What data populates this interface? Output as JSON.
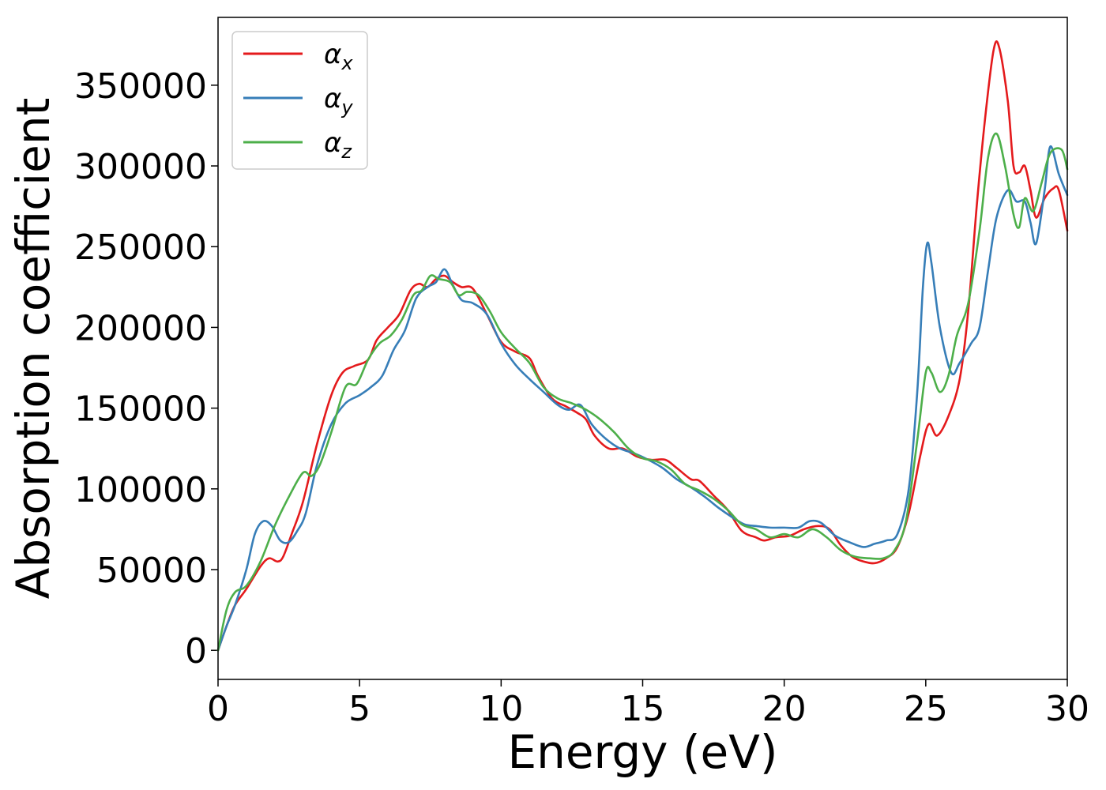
{
  "chart_data": {
    "type": "line",
    "title": "",
    "xlabel": "Energy (eV)",
    "ylabel": "Absorption coefficient",
    "xlim": [
      0,
      30
    ],
    "ylim": [
      -18000,
      392000
    ],
    "xticks": [
      0,
      5,
      10,
      15,
      20,
      25,
      30
    ],
    "yticks": [
      0,
      50000,
      100000,
      150000,
      200000,
      250000,
      300000,
      350000
    ],
    "grid": false,
    "legend_position": "top-left",
    "series": [
      {
        "name": "α_x",
        "label_main": "α",
        "label_sub": "x",
        "color": "#e41a1c",
        "points": [
          [
            0,
            0
          ],
          [
            0.3,
            15000
          ],
          [
            0.6,
            28000
          ],
          [
            1.0,
            38000
          ],
          [
            1.5,
            52000
          ],
          [
            1.8,
            57000
          ],
          [
            2.1,
            55000
          ],
          [
            2.3,
            58000
          ],
          [
            2.6,
            72000
          ],
          [
            3.0,
            92000
          ],
          [
            3.5,
            128000
          ],
          [
            4.0,
            158000
          ],
          [
            4.4,
            172000
          ],
          [
            4.8,
            176000
          ],
          [
            5.3,
            180000
          ],
          [
            5.6,
            192000
          ],
          [
            6.0,
            200000
          ],
          [
            6.4,
            208000
          ],
          [
            6.8,
            223000
          ],
          [
            7.1,
            227000
          ],
          [
            7.4,
            225000
          ],
          [
            7.7,
            230000
          ],
          [
            8.0,
            232000
          ],
          [
            8.3,
            228000
          ],
          [
            8.6,
            225000
          ],
          [
            9.0,
            224000
          ],
          [
            9.5,
            208000
          ],
          [
            10.0,
            191000
          ],
          [
            10.5,
            185000
          ],
          [
            11.0,
            181000
          ],
          [
            11.3,
            170000
          ],
          [
            11.8,
            156000
          ],
          [
            12.3,
            151000
          ],
          [
            12.7,
            147000
          ],
          [
            13.0,
            143000
          ],
          [
            13.3,
            133000
          ],
          [
            13.8,
            125000
          ],
          [
            14.3,
            125000
          ],
          [
            14.8,
            120000
          ],
          [
            15.3,
            118000
          ],
          [
            15.8,
            118000
          ],
          [
            16.2,
            113000
          ],
          [
            16.7,
            106000
          ],
          [
            17.0,
            105000
          ],
          [
            17.5,
            96000
          ],
          [
            18.0,
            87000
          ],
          [
            18.5,
            74000
          ],
          [
            19.0,
            70000
          ],
          [
            19.3,
            68000
          ],
          [
            19.7,
            70000
          ],
          [
            20.2,
            71000
          ],
          [
            20.7,
            75000
          ],
          [
            21.2,
            77000
          ],
          [
            21.6,
            75000
          ],
          [
            22.0,
            65000
          ],
          [
            22.4,
            58000
          ],
          [
            22.8,
            55000
          ],
          [
            23.2,
            54000
          ],
          [
            23.6,
            57000
          ],
          [
            24.0,
            64000
          ],
          [
            24.4,
            85000
          ],
          [
            24.8,
            120000
          ],
          [
            25.1,
            140000
          ],
          [
            25.4,
            133000
          ],
          [
            25.8,
            145000
          ],
          [
            26.2,
            168000
          ],
          [
            26.5,
            210000
          ],
          [
            26.8,
            275000
          ],
          [
            27.1,
            330000
          ],
          [
            27.4,
            372000
          ],
          [
            27.6,
            373000
          ],
          [
            27.9,
            340000
          ],
          [
            28.1,
            300000
          ],
          [
            28.3,
            296000
          ],
          [
            28.5,
            300000
          ],
          [
            28.7,
            285000
          ],
          [
            28.9,
            268000
          ],
          [
            29.2,
            280000
          ],
          [
            29.5,
            286000
          ],
          [
            29.7,
            285000
          ],
          [
            30.0,
            260000
          ]
        ]
      },
      {
        "name": "α_y",
        "label_main": "α",
        "label_sub": "y",
        "color": "#377eb8",
        "points": [
          [
            0,
            0
          ],
          [
            0.3,
            15000
          ],
          [
            0.6,
            28000
          ],
          [
            1.0,
            50000
          ],
          [
            1.3,
            72000
          ],
          [
            1.6,
            80000
          ],
          [
            1.9,
            77000
          ],
          [
            2.2,
            68000
          ],
          [
            2.5,
            67000
          ],
          [
            2.8,
            74000
          ],
          [
            3.1,
            85000
          ],
          [
            3.5,
            115000
          ],
          [
            4.0,
            140000
          ],
          [
            4.5,
            153000
          ],
          [
            5.0,
            158000
          ],
          [
            5.4,
            163000
          ],
          [
            5.8,
            170000
          ],
          [
            6.2,
            186000
          ],
          [
            6.6,
            198000
          ],
          [
            7.0,
            218000
          ],
          [
            7.4,
            225000
          ],
          [
            7.7,
            228000
          ],
          [
            8.0,
            236000
          ],
          [
            8.3,
            226000
          ],
          [
            8.6,
            217000
          ],
          [
            9.0,
            215000
          ],
          [
            9.5,
            208000
          ],
          [
            10.0,
            190000
          ],
          [
            10.5,
            177000
          ],
          [
            11.0,
            168000
          ],
          [
            11.5,
            160000
          ],
          [
            12.0,
            152000
          ],
          [
            12.4,
            149000
          ],
          [
            12.8,
            152000
          ],
          [
            13.2,
            140000
          ],
          [
            13.7,
            131000
          ],
          [
            14.2,
            125000
          ],
          [
            14.7,
            122000
          ],
          [
            15.2,
            118000
          ],
          [
            15.7,
            113000
          ],
          [
            16.2,
            106000
          ],
          [
            16.7,
            101000
          ],
          [
            17.2,
            95000
          ],
          [
            17.7,
            88000
          ],
          [
            18.2,
            82000
          ],
          [
            18.6,
            78000
          ],
          [
            19.0,
            77000
          ],
          [
            19.5,
            76000
          ],
          [
            20.0,
            76000
          ],
          [
            20.5,
            76000
          ],
          [
            20.9,
            80000
          ],
          [
            21.3,
            79000
          ],
          [
            21.8,
            71000
          ],
          [
            22.3,
            67000
          ],
          [
            22.8,
            64000
          ],
          [
            23.2,
            66000
          ],
          [
            23.6,
            68000
          ],
          [
            24.0,
            72000
          ],
          [
            24.4,
            100000
          ],
          [
            24.7,
            160000
          ],
          [
            24.9,
            225000
          ],
          [
            25.05,
            252000
          ],
          [
            25.2,
            240000
          ],
          [
            25.5,
            200000
          ],
          [
            25.9,
            172000
          ],
          [
            26.2,
            178000
          ],
          [
            26.6,
            190000
          ],
          [
            26.9,
            200000
          ],
          [
            27.2,
            235000
          ],
          [
            27.5,
            268000
          ],
          [
            27.9,
            285000
          ],
          [
            28.2,
            278000
          ],
          [
            28.5,
            278000
          ],
          [
            28.7,
            265000
          ],
          [
            28.9,
            252000
          ],
          [
            29.2,
            285000
          ],
          [
            29.4,
            312000
          ],
          [
            29.7,
            295000
          ],
          [
            30.0,
            282000
          ]
        ]
      },
      {
        "name": "α_z",
        "label_main": "α",
        "label_sub": "z",
        "color": "#4daf4a",
        "points": [
          [
            0,
            0
          ],
          [
            0.3,
            25000
          ],
          [
            0.6,
            36000
          ],
          [
            1.0,
            40000
          ],
          [
            1.5,
            55000
          ],
          [
            2.0,
            77000
          ],
          [
            2.5,
            95000
          ],
          [
            3.0,
            110000
          ],
          [
            3.3,
            108000
          ],
          [
            3.6,
            115000
          ],
          [
            4.0,
            135000
          ],
          [
            4.5,
            163000
          ],
          [
            4.9,
            165000
          ],
          [
            5.3,
            180000
          ],
          [
            5.7,
            190000
          ],
          [
            6.1,
            195000
          ],
          [
            6.5,
            205000
          ],
          [
            6.9,
            220000
          ],
          [
            7.2,
            223000
          ],
          [
            7.5,
            232000
          ],
          [
            7.8,
            230000
          ],
          [
            8.2,
            228000
          ],
          [
            8.5,
            220000
          ],
          [
            8.8,
            222000
          ],
          [
            9.2,
            220000
          ],
          [
            9.6,
            210000
          ],
          [
            10.0,
            197000
          ],
          [
            10.5,
            187000
          ],
          [
            11.0,
            178000
          ],
          [
            11.5,
            163000
          ],
          [
            12.0,
            156000
          ],
          [
            12.5,
            153000
          ],
          [
            13.0,
            149000
          ],
          [
            13.5,
            143000
          ],
          [
            14.0,
            135000
          ],
          [
            14.5,
            125000
          ],
          [
            15.0,
            119000
          ],
          [
            15.5,
            117000
          ],
          [
            16.0,
            112000
          ],
          [
            16.5,
            103000
          ],
          [
            17.0,
            99000
          ],
          [
            17.5,
            94000
          ],
          [
            18.0,
            87000
          ],
          [
            18.5,
            78000
          ],
          [
            19.0,
            75000
          ],
          [
            19.5,
            70000
          ],
          [
            20.0,
            72000
          ],
          [
            20.5,
            70000
          ],
          [
            21.0,
            75000
          ],
          [
            21.5,
            70000
          ],
          [
            22.0,
            62000
          ],
          [
            22.5,
            58000
          ],
          [
            23.0,
            57000
          ],
          [
            23.5,
            57000
          ],
          [
            23.9,
            62000
          ],
          [
            24.3,
            80000
          ],
          [
            24.7,
            130000
          ],
          [
            25.0,
            172000
          ],
          [
            25.2,
            172000
          ],
          [
            25.5,
            160000
          ],
          [
            25.8,
            170000
          ],
          [
            26.1,
            195000
          ],
          [
            26.5,
            215000
          ],
          [
            26.9,
            260000
          ],
          [
            27.2,
            305000
          ],
          [
            27.5,
            320000
          ],
          [
            27.8,
            300000
          ],
          [
            28.1,
            270000
          ],
          [
            28.3,
            262000
          ],
          [
            28.5,
            280000
          ],
          [
            28.8,
            272000
          ],
          [
            29.1,
            290000
          ],
          [
            29.4,
            308000
          ],
          [
            29.8,
            310000
          ],
          [
            30.0,
            298000
          ]
        ]
      }
    ]
  }
}
